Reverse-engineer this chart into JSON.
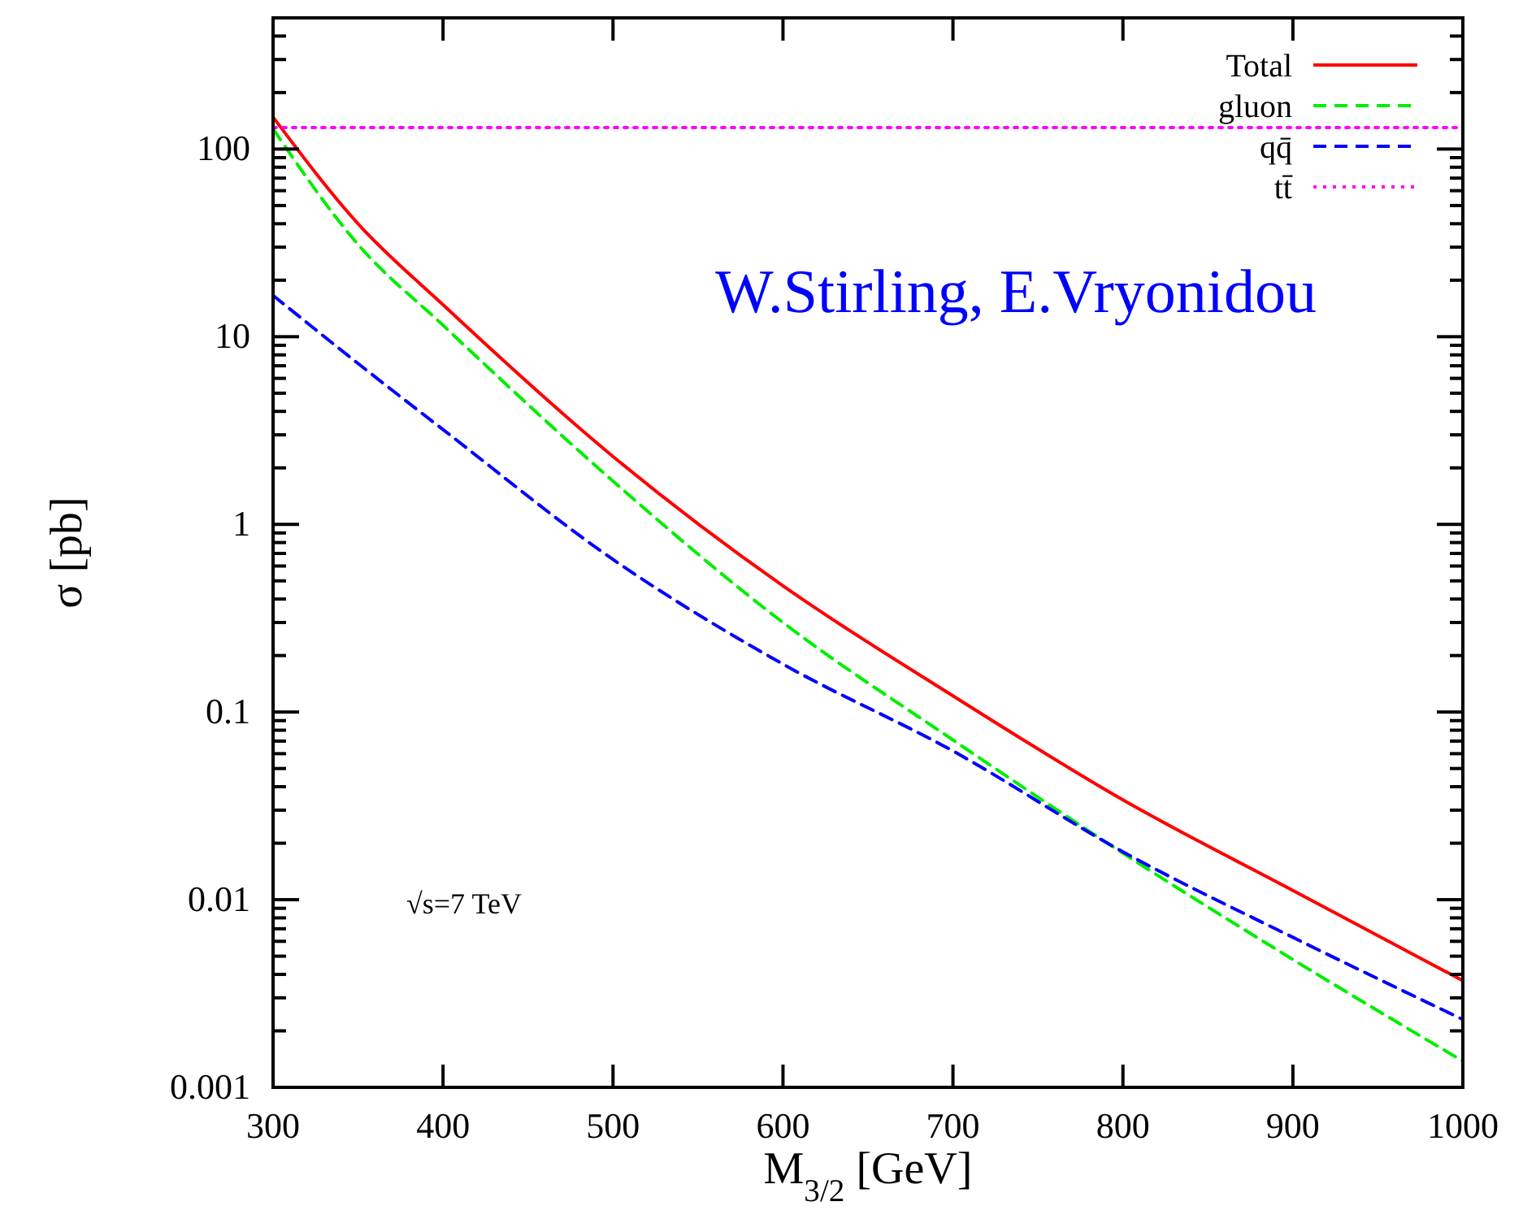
{
  "chart_data": {
    "type": "line",
    "xlabel": "M$_{3/2}$ [GeV]",
    "ylabel": "σ [pb]",
    "x": [
      300,
      350,
      400,
      500,
      600,
      700,
      800,
      900,
      1000
    ],
    "series": [
      {
        "name": "Total",
        "color": "#ff0000",
        "line_style": "solid",
        "values": [
          148,
          40,
          14.8,
          2.3,
          0.47,
          0.122,
          0.034,
          0.0112,
          0.0037
        ]
      },
      {
        "name": "gluon",
        "color": "#00ee00",
        "line_style": "dashed",
        "values": [
          128,
          31,
          11.5,
          1.7,
          0.3,
          0.071,
          0.0177,
          0.0048,
          0.00138
        ]
      },
      {
        "name": "qq̄",
        "color": "#0000ff",
        "line_style": "dashed",
        "values": [
          16.6,
          7.2,
          3.2,
          0.65,
          0.18,
          0.062,
          0.018,
          0.0063,
          0.0023
        ]
      },
      {
        "name": "tt̄",
        "color": "#ff00ff",
        "line_style": "dotted",
        "values": [
          130,
          130,
          130,
          130,
          130,
          130,
          130,
          130,
          130
        ]
      }
    ],
    "log": "y",
    "xlim": [
      300,
      1000
    ],
    "xticks": [
      300,
      400,
      500,
      600,
      700,
      800,
      900,
      1000
    ],
    "ylim": [
      0.001,
      500
    ],
    "yticks": [
      0.001,
      {
        "value": 0.002,
        "label": null
      },
      {
        "value": 0.003,
        "label": null
      },
      {
        "value": 0.004,
        "label": null
      },
      {
        "value": 0.005,
        "label": null
      },
      {
        "value": 0.006,
        "label": null
      },
      {
        "value": 0.007,
        "label": null
      },
      {
        "value": 0.008,
        "label": null
      },
      {
        "value": 0.009,
        "label": null
      },
      0.01,
      {
        "value": 0.02,
        "label": null
      },
      {
        "value": 0.03,
        "label": null
      },
      {
        "value": 0.04,
        "label": null
      },
      {
        "value": 0.05,
        "label": null
      },
      {
        "value": 0.06,
        "label": null
      },
      {
        "value": 0.07,
        "label": null
      },
      {
        "value": 0.08,
        "label": null
      },
      {
        "value": 0.09,
        "label": null
      },
      0.1,
      {
        "value": 0.2,
        "label": null
      },
      {
        "value": 0.3,
        "label": null
      },
      {
        "value": 0.4,
        "label": null
      },
      {
        "value": 0.5,
        "label": null
      },
      {
        "value": 0.6,
        "label": null
      },
      {
        "value": 0.7,
        "label": null
      },
      {
        "value": 0.8,
        "label": null
      },
      {
        "value": 0.9,
        "label": null
      },
      1,
      {
        "value": 2,
        "label": null
      },
      {
        "value": 3,
        "label": null
      },
      {
        "value": 4,
        "label": null
      },
      {
        "value": 5,
        "label": null
      },
      {
        "value": 6,
        "label": null
      },
      {
        "value": 7,
        "label": null
      },
      {
        "value": 8,
        "label": null
      },
      {
        "value": 9,
        "label": null
      },
      10,
      {
        "value": 20,
        "label": null
      },
      {
        "value": 30,
        "label": null
      },
      {
        "value": 40,
        "label": null
      },
      {
        "value": 50,
        "label": null
      },
      {
        "value": 60,
        "label": null
      },
      {
        "value": 70,
        "label": null
      },
      {
        "value": 80,
        "label": null
      },
      {
        "value": 90,
        "label": null
      },
      100,
      {
        "value": 200,
        "label": null
      },
      {
        "value": 300,
        "label": null
      },
      {
        "value": 400,
        "label": null
      }
    ],
    "grid": false,
    "legend": "top right",
    "marker": "none",
    "annotations": [
      "√s=7 TeV",
      "W.Stirling, E.Vryonidou"
    ]
  }
}
